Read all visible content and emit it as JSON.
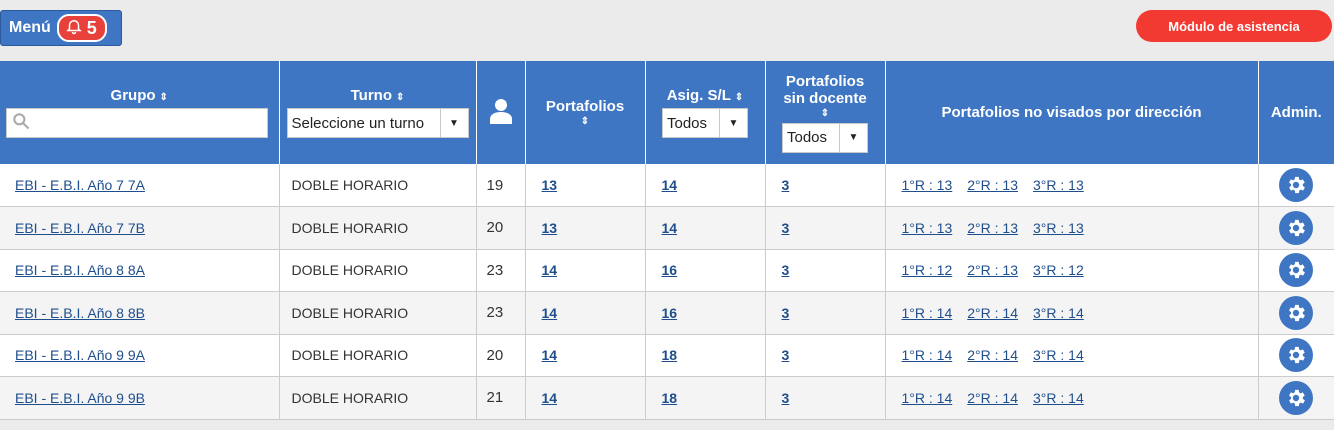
{
  "menu": {
    "label": "Menú",
    "notification_count": "5"
  },
  "asistencia_button": "Módulo de asistencia",
  "columns": {
    "grupo": "Grupo",
    "turno": "Turno",
    "portafolios": "Portafolios",
    "asig": "Asig. S/L",
    "sin_docente_line1": "Portafolios",
    "sin_docente_line2": "sin docente",
    "no_visados": "Portafolios no visados por dirección",
    "admin": "Admin."
  },
  "filters": {
    "grupo_search": "",
    "turno_select": "Seleccione un turno",
    "asig_select": "Todos",
    "sin_docente_select": "Todos"
  },
  "rows": [
    {
      "grupo": "EBI - E.B.I. Año 7 7A",
      "turno": "DOBLE HORARIO",
      "alumnos": "19",
      "portafolios": "13",
      "asig": "14",
      "sin_docente": "3",
      "r1": "1°R : 13",
      "r2": "2°R : 13",
      "r3": "3°R : 13"
    },
    {
      "grupo": "EBI - E.B.I. Año 7 7B",
      "turno": "DOBLE HORARIO",
      "alumnos": "20",
      "portafolios": "13",
      "asig": "14",
      "sin_docente": "3",
      "r1": "1°R : 13",
      "r2": "2°R : 13",
      "r3": "3°R : 13"
    },
    {
      "grupo": "EBI - E.B.I. Año 8 8A",
      "turno": "DOBLE HORARIO",
      "alumnos": "23",
      "portafolios": "14",
      "asig": "16",
      "sin_docente": "3",
      "r1": "1°R : 12",
      "r2": "2°R : 13",
      "r3": "3°R : 12"
    },
    {
      "grupo": "EBI - E.B.I. Año 8 8B",
      "turno": "DOBLE HORARIO",
      "alumnos": "23",
      "portafolios": "14",
      "asig": "16",
      "sin_docente": "3",
      "r1": "1°R : 14",
      "r2": "2°R : 14",
      "r3": "3°R : 14"
    },
    {
      "grupo": "EBI - E.B.I. Año 9 9A",
      "turno": "DOBLE HORARIO",
      "alumnos": "20",
      "portafolios": "14",
      "asig": "18",
      "sin_docente": "3",
      "r1": "1°R : 14",
      "r2": "2°R : 14",
      "r3": "3°R : 14"
    },
    {
      "grupo": "EBI - E.B.I. Año 9 9B",
      "turno": "DOBLE HORARIO",
      "alumnos": "21",
      "portafolios": "14",
      "asig": "18",
      "sin_docente": "3",
      "r1": "1°R : 14",
      "r2": "2°R : 14",
      "r3": "3°R : 14"
    }
  ],
  "colors": {
    "header_blue": "#3f76c3",
    "alert_red": "#f23a32"
  },
  "icons": {
    "notification": "bell-icon",
    "students": "user-icon",
    "search": "search-icon",
    "admin": "gear-icon"
  }
}
